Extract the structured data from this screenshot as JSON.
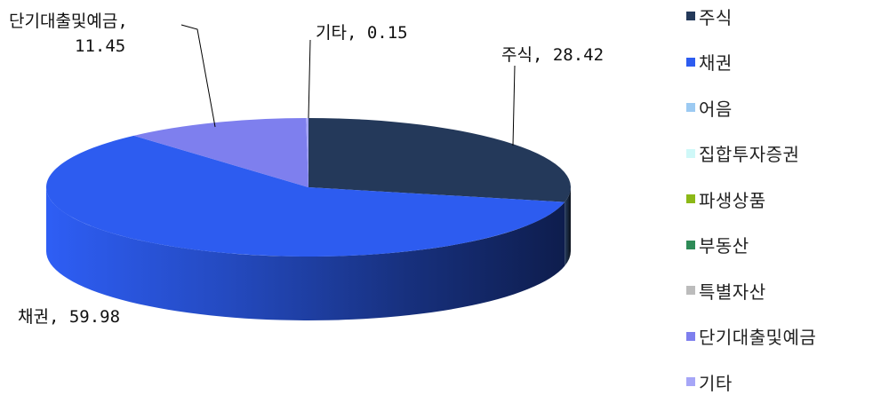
{
  "chart_data": {
    "type": "pie",
    "categories": [
      "주식",
      "채권",
      "어음",
      "집합투자증권",
      "파생상품",
      "부동산",
      "특별자산",
      "단기대출및예금",
      "기타"
    ],
    "values": [
      28.42,
      59.98,
      0,
      0,
      0,
      0,
      0,
      11.45,
      0.15
    ],
    "colors": [
      "#24395A",
      "#2D5CF0",
      "#9CCAF2",
      "#CFF8F8",
      "#8CB817",
      "#2E8B57",
      "#BCBCBC",
      "#7E7FEE",
      "#A6A6F7"
    ],
    "legend_position": "right",
    "slice_labels": [
      {
        "category": "주식",
        "text": "주식, 28.42"
      },
      {
        "category": "채권",
        "text": "채권, 59.98"
      },
      {
        "category": "단기대출및예금",
        "text_lines": [
          "단기대출및예금,",
          "11.45"
        ]
      },
      {
        "category": "기타",
        "text": "기타, 0.15"
      }
    ],
    "legend_labels": [
      "주식",
      "채권",
      "어음",
      "집합투자증권",
      "파생상품",
      "부동산",
      "특별자산",
      "단기대출및예금",
      "기타"
    ]
  }
}
